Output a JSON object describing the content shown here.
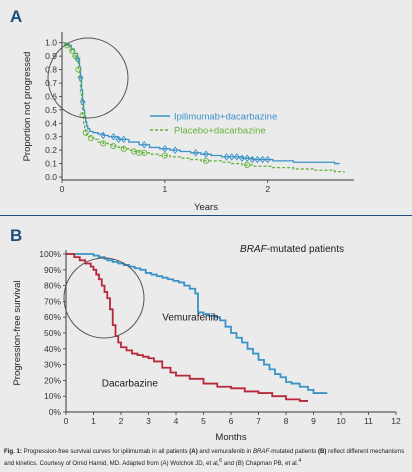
{
  "chart_data": [
    {
      "panel_label": "A",
      "type": "line",
      "xlabel": "Years",
      "ylabel": "Proportion not progressed",
      "xlim": [
        0,
        2.8
      ],
      "ylim": [
        0,
        1.05
      ],
      "xticks": [
        "0",
        "1",
        "2"
      ],
      "yticks": [
        "0.0",
        "0.1",
        "0.2",
        "0.3",
        "0.4",
        "0.5",
        "0.6",
        "0.7",
        "0.8",
        "0.9",
        "1.0"
      ],
      "legend_position": "right",
      "series": [
        {
          "name": "Ipilimumab+dacarbazine",
          "color": "#3a93c8",
          "style": "solid",
          "x": [
            0,
            0.03,
            0.06,
            0.09,
            0.12,
            0.15,
            0.17,
            0.18,
            0.19,
            0.2,
            0.21,
            0.22,
            0.23,
            0.24,
            0.25,
            0.27,
            0.3,
            0.35,
            0.4,
            0.45,
            0.55,
            0.65,
            0.75,
            0.85,
            0.95,
            1.05,
            1.15,
            1.25,
            1.35,
            1.45,
            1.55,
            1.65,
            1.75,
            1.85,
            1.95,
            2.05,
            2.15,
            2.25,
            2.35,
            2.45,
            2.55,
            2.65,
            2.7
          ],
          "y": [
            1.0,
            0.99,
            0.98,
            0.95,
            0.92,
            0.88,
            0.82,
            0.74,
            0.65,
            0.56,
            0.5,
            0.45,
            0.41,
            0.38,
            0.36,
            0.34,
            0.33,
            0.32,
            0.31,
            0.3,
            0.28,
            0.26,
            0.24,
            0.22,
            0.21,
            0.2,
            0.19,
            0.18,
            0.17,
            0.16,
            0.15,
            0.15,
            0.14,
            0.13,
            0.13,
            0.12,
            0.12,
            0.11,
            0.11,
            0.11,
            0.11,
            0.1,
            0.1
          ],
          "censor_x": [
            0.15,
            0.18,
            0.2,
            0.4,
            0.5,
            0.55,
            0.6,
            0.8,
            1.0,
            1.1,
            1.3,
            1.4,
            1.6,
            1.65,
            1.7,
            1.75,
            1.8,
            1.85,
            1.9,
            1.95,
            2.0
          ]
        },
        {
          "name": "Placebo+dacarbazine",
          "color": "#64b33c",
          "style": "dashed",
          "x": [
            0,
            0.03,
            0.06,
            0.09,
            0.12,
            0.14,
            0.16,
            0.17,
            0.18,
            0.19,
            0.2,
            0.21,
            0.22,
            0.23,
            0.24,
            0.26,
            0.28,
            0.31,
            0.35,
            0.4,
            0.45,
            0.5,
            0.55,
            0.6,
            0.65,
            0.7,
            0.75,
            0.85,
            0.95,
            1.05,
            1.15,
            1.25,
            1.35,
            1.45,
            1.55,
            1.65,
            1.75,
            1.85,
            1.95,
            2.05,
            2.15,
            2.25,
            2.35,
            2.45,
            2.55,
            2.65,
            2.75
          ],
          "y": [
            1.0,
            0.98,
            0.97,
            0.94,
            0.9,
            0.86,
            0.8,
            0.72,
            0.63,
            0.54,
            0.46,
            0.4,
            0.36,
            0.33,
            0.31,
            0.3,
            0.29,
            0.28,
            0.26,
            0.25,
            0.24,
            0.23,
            0.22,
            0.21,
            0.2,
            0.19,
            0.18,
            0.17,
            0.16,
            0.15,
            0.14,
            0.13,
            0.12,
            0.12,
            0.11,
            0.1,
            0.09,
            0.08,
            0.08,
            0.07,
            0.07,
            0.06,
            0.06,
            0.05,
            0.05,
            0.04,
            0.04
          ],
          "censor_x": [
            0.05,
            0.1,
            0.13,
            0.16,
            0.2,
            0.23,
            0.28,
            0.4,
            0.5,
            0.6,
            0.7,
            0.75,
            0.8,
            1.0,
            1.4,
            1.8
          ]
        }
      ]
    },
    {
      "panel_label": "B",
      "type": "line",
      "title": "BRAF-mutated patients",
      "title_italic_part": "BRAF",
      "title_rest": "-mutated patients",
      "xlabel": "Months",
      "ylabel": "Progression-free survival",
      "xlim": [
        0,
        12
      ],
      "ylim": [
        0,
        100
      ],
      "xticks": [
        "0",
        "1",
        "2",
        "3",
        "4",
        "5",
        "6",
        "7",
        "8",
        "9",
        "10",
        "11",
        "12"
      ],
      "yticks": [
        "0%",
        "10%",
        "20%",
        "30%",
        "40%",
        "50%",
        "60%",
        "70%",
        "80%",
        "90%",
        "100%"
      ],
      "grid": false,
      "series": [
        {
          "name": "Vemurafenib",
          "label_at": [
            3.5,
            58
          ],
          "color": "#3a93c8",
          "style": "solid",
          "x": [
            0,
            0.8,
            1.0,
            1.2,
            1.4,
            1.5,
            1.7,
            1.9,
            2.1,
            2.3,
            2.5,
            2.7,
            2.9,
            3.1,
            3.3,
            3.5,
            3.7,
            3.9,
            4.1,
            4.3,
            4.5,
            4.7,
            4.8,
            5.0,
            5.2,
            5.4,
            5.6,
            5.8,
            6.0,
            6.2,
            6.4,
            6.6,
            6.8,
            7.0,
            7.2,
            7.4,
            7.6,
            7.8,
            8.0,
            8.2,
            8.5,
            8.8,
            9.0,
            9.5
          ],
          "y": [
            100,
            100,
            99,
            98,
            97,
            96,
            95,
            94,
            93,
            92,
            91,
            90,
            88,
            87,
            86,
            85,
            84,
            83,
            82,
            80,
            78,
            75,
            63,
            62,
            61,
            60,
            58,
            54,
            50,
            47,
            44,
            40,
            37,
            33,
            30,
            27,
            24,
            22,
            19,
            18,
            16,
            14,
            12,
            12
          ]
        },
        {
          "name": "Dacarbazine",
          "label_at": [
            1.3,
            16
          ],
          "color": "#b8273a",
          "style": "solid",
          "x": [
            0,
            0.3,
            0.5,
            0.7,
            0.9,
            1.0,
            1.1,
            1.2,
            1.3,
            1.4,
            1.5,
            1.6,
            1.7,
            1.8,
            1.9,
            2.0,
            2.2,
            2.4,
            2.6,
            2.8,
            3.0,
            3.2,
            3.5,
            3.8,
            4.0,
            4.5,
            5.0,
            5.5,
            6.0,
            6.5,
            7.0,
            7.5,
            8.0,
            8.5,
            8.8
          ],
          "y": [
            100,
            98,
            96,
            94,
            92,
            90,
            87,
            84,
            80,
            76,
            72,
            65,
            55,
            48,
            44,
            41,
            39,
            37,
            36,
            35,
            34,
            32,
            28,
            25,
            23,
            21,
            18,
            16,
            15,
            13,
            12,
            10,
            8,
            7,
            7
          ]
        }
      ]
    }
  ],
  "caption": {
    "fig_label": "Fig. 1:",
    "text_1": " Progression-free survival curves for ipilimumab in all patients ",
    "ref_a": "(A)",
    "text_2": " and vemurafenib in ",
    "braf": "BRAF",
    "text_3": "-mutated patients ",
    "ref_b": "(B)",
    "text_4": " reflect different mechanisms and kinetics. Courtesy of Omid Hamid, MD. Adapted from (A) Wolchok JD, et al,",
    "sup_1": "6",
    "text_5": " and (B) Chapman PB, et al.",
    "sup_2": "4"
  },
  "colors": {
    "axis": "#3a3a3a",
    "panel_label": "#1f4e79",
    "circle": "#555555"
  }
}
